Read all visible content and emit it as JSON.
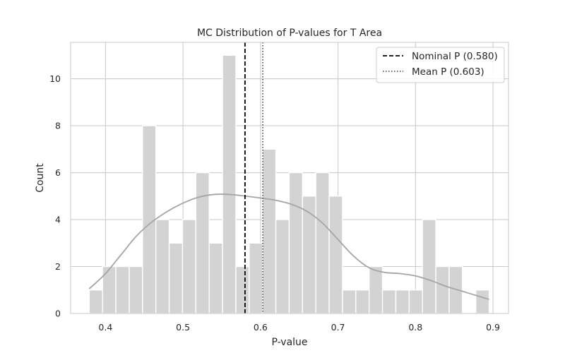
{
  "chart_data": {
    "type": "bar",
    "title": "MC Distribution of P-values for T Area",
    "xlabel": "P-value",
    "ylabel": "Count",
    "xlim": [
      0.355,
      0.92
    ],
    "ylim": [
      0,
      11.55
    ],
    "xticks": [
      "0.4",
      "0.5",
      "0.6",
      "0.7",
      "0.8",
      "0.9"
    ],
    "xtick_values": [
      0.4,
      0.5,
      0.6,
      0.7,
      0.8,
      0.9
    ],
    "yticks": [
      "0",
      "2",
      "4",
      "6",
      "8",
      "10"
    ],
    "ytick_values": [
      0,
      2,
      4,
      6,
      8,
      10
    ],
    "grid": true,
    "bins": {
      "edges_start": 0.379,
      "bin_width": 0.0172,
      "counts": [
        1,
        2,
        2,
        2,
        8,
        4,
        3,
        4,
        6,
        3,
        11,
        2,
        3,
        7,
        4,
        6,
        5,
        6,
        5,
        1,
        1,
        2,
        1,
        1,
        1,
        4,
        2,
        2,
        0,
        1
      ]
    },
    "kde": {
      "x": [
        0.379,
        0.4,
        0.42,
        0.44,
        0.46,
        0.48,
        0.5,
        0.52,
        0.54,
        0.56,
        0.58,
        0.6,
        0.62,
        0.64,
        0.66,
        0.68,
        0.7,
        0.72,
        0.74,
        0.76,
        0.78,
        0.8,
        0.82,
        0.84,
        0.86,
        0.88,
        0.895
      ],
      "y": [
        1.05,
        1.7,
        2.5,
        3.3,
        3.9,
        4.35,
        4.7,
        4.95,
        5.07,
        5.07,
        5.0,
        4.92,
        4.82,
        4.65,
        4.35,
        3.85,
        3.15,
        2.45,
        1.95,
        1.75,
        1.7,
        1.6,
        1.4,
        1.15,
        0.95,
        0.75,
        0.6
      ],
      "color": "#a5a5a5"
    },
    "vlines": [
      {
        "name": "Nominal P (0.580)",
        "x": 0.58,
        "style": "dashed",
        "color": "#000000"
      },
      {
        "name": "Mean P (0.603)",
        "x": 0.603,
        "style": "dotted",
        "color": "#555555"
      }
    ],
    "bar_color": "#d3d3d3",
    "legend_placement": "top-right"
  }
}
